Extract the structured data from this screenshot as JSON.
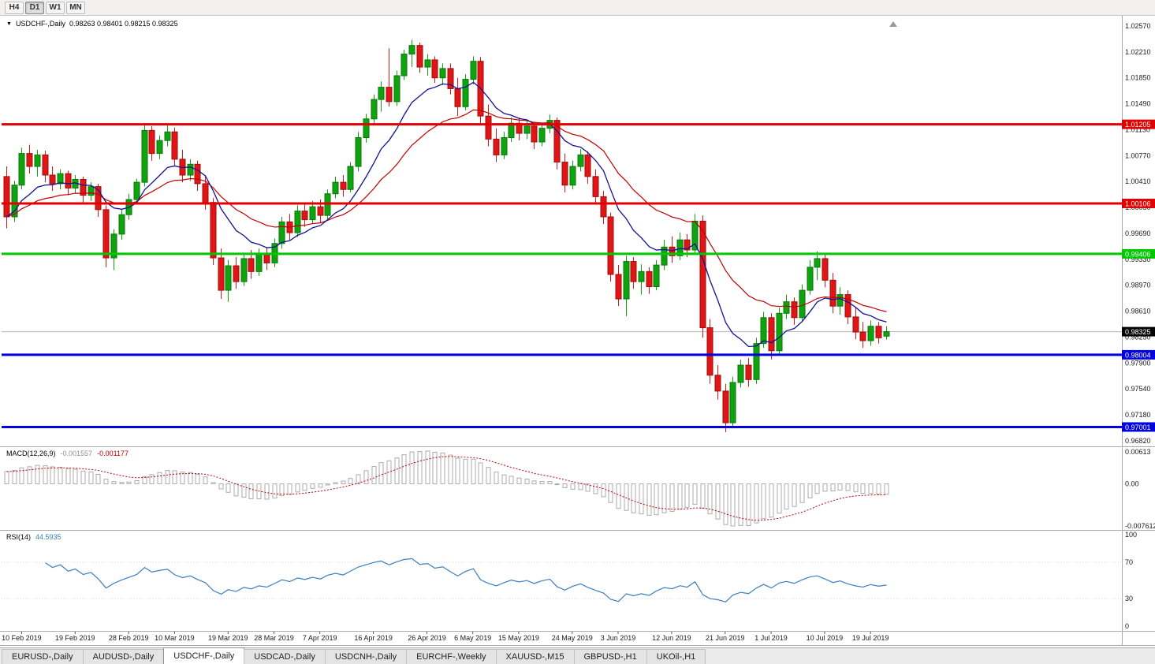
{
  "toolbar": {
    "timeframes": [
      "H4",
      "D1",
      "W1",
      "MN"
    ],
    "active_timeframe": "D1"
  },
  "chart": {
    "title": "USDCHF-,Daily",
    "ohlc_readout": "0.98263 0.98401 0.98215 0.98325"
  },
  "macd_panel": {
    "name": "MACD(12,26,9)",
    "value_main": "-0.001557",
    "value_signal": "-0.001177"
  },
  "rsi_panel": {
    "name": "RSI(14)",
    "value": "44.5935"
  },
  "tabs": [
    "EURUSD-,Daily",
    "AUDUSD-,Daily",
    "USDCHF-,Daily",
    "USDCAD-,Daily",
    "USDCNH-,Daily",
    "EURCHF-,Weekly",
    "XAUUSD-,M15",
    "GBPUSD-,H1",
    "UKOil-,H1"
  ],
  "active_tab": "USDCHF-,Daily",
  "chart_data": {
    "type": "candlestick",
    "symbol": "USDCHF",
    "timeframe": "Daily",
    "colors": {
      "up": "#0FA30F",
      "up_border": "#077707",
      "down": "#E01616",
      "down_border": "#A00C0C",
      "ma_fast": "#121293",
      "ma_slow": "#C00000",
      "rsi": "#3C7EBF",
      "macd_hist": "#ABABAB",
      "macd_signal": "#C00000"
    },
    "y_axis": {
      "top_price": 1.0257,
      "step": 0.0036,
      "bottom_price": 0.9682
    },
    "price_axis_labels": [
      "1.02570",
      "1.02210",
      "1.01850",
      "1.01490",
      "1.01130",
      "1.00770",
      "1.00410",
      "1.00050",
      "0.99690",
      "0.99330",
      "0.98970",
      "0.98610",
      "0.98250",
      "0.97900",
      "0.97540",
      "0.97180",
      "0.96820"
    ],
    "levels": [
      {
        "price": 1.01205,
        "label": "1.01205",
        "color": "#E00000",
        "type": "resistance"
      },
      {
        "price": 1.00106,
        "label": "1.00106",
        "color": "#E00000",
        "type": "resistance"
      },
      {
        "price": 0.99406,
        "label": "0.99406",
        "color": "#00C800",
        "type": "pivot"
      },
      {
        "price": 0.98004,
        "label": "0.98004",
        "color": "#0000E0",
        "type": "support"
      },
      {
        "price": 0.97001,
        "label": "0.97001",
        "color": "#0000E0",
        "type": "support"
      }
    ],
    "current_price": {
      "price": 0.98325,
      "label": "0.98325"
    },
    "indicators": {
      "macd": {
        "fast": 12,
        "slow": 26,
        "signal": 9,
        "axis_max": "0.00613",
        "axis_zero": "0.00",
        "axis_min": "-0.007612"
      },
      "rsi": {
        "period": 14,
        "axis": [
          "100",
          "70",
          "30",
          "0"
        ]
      }
    },
    "date_labels": [
      {
        "text": "10 Feb 2019",
        "i": 2
      },
      {
        "text": "19 Feb 2019",
        "i": 9
      },
      {
        "text": "28 Feb 2019",
        "i": 16
      },
      {
        "text": "10 Mar 2019",
        "i": 22
      },
      {
        "text": "19 Mar 2019",
        "i": 29
      },
      {
        "text": "28 Mar 2019",
        "i": 35
      },
      {
        "text": "7 Apr 2019",
        "i": 41
      },
      {
        "text": "16 Apr 2019",
        "i": 48
      },
      {
        "text": "26 Apr 2019",
        "i": 55
      },
      {
        "text": "6 May 2019",
        "i": 61
      },
      {
        "text": "15 May 2019",
        "i": 67
      },
      {
        "text": "24 May 2019",
        "i": 74
      },
      {
        "text": "3 Jun 2019",
        "i": 80
      },
      {
        "text": "12 Jun 2019",
        "i": 87
      },
      {
        "text": "21 Jun 2019",
        "i": 94
      },
      {
        "text": "1 Jul 2019",
        "i": 100
      },
      {
        "text": "10 Jul 2019",
        "i": 107
      },
      {
        "text": "19 Jul 2019",
        "i": 113
      }
    ],
    "ohlc": [
      [
        1.0048,
        1.0062,
        0.9976,
        0.9992
      ],
      [
        0.9992,
        1.0042,
        0.9985,
        1.0036
      ],
      [
        1.0036,
        1.0088,
        1.003,
        1.008
      ],
      [
        1.008,
        1.0092,
        1.0052,
        1.0062
      ],
      [
        1.0062,
        1.0085,
        1.0048,
        1.0078
      ],
      [
        1.0078,
        1.0084,
        1.004,
        1.005
      ],
      [
        1.005,
        1.0062,
        1.0028,
        1.0038
      ],
      [
        1.0038,
        1.0058,
        1.003,
        1.0052
      ],
      [
        1.0052,
        1.0056,
        1.0022,
        1.0032
      ],
      [
        1.0032,
        1.005,
        1.0024,
        1.0044
      ],
      [
        1.0044,
        1.0048,
        1.0012,
        1.0022
      ],
      [
        1.0022,
        1.004,
        1.0014,
        1.0034
      ],
      [
        1.0034,
        1.0038,
        0.9992,
        1.0002
      ],
      [
        1.0002,
        1.0008,
        0.9922,
        0.9935
      ],
      [
        0.9935,
        0.9975,
        0.9918,
        0.9968
      ],
      [
        0.9968,
        1.0002,
        0.996,
        0.9995
      ],
      [
        0.9995,
        1.0024,
        0.9988,
        1.0016
      ],
      [
        1.0016,
        1.0045,
        1.001,
        1.004
      ],
      [
        1.004,
        1.0122,
        1.0034,
        1.0112
      ],
      [
        1.0112,
        1.0118,
        1.007,
        1.008
      ],
      [
        1.008,
        1.0105,
        1.0072,
        1.0098
      ],
      [
        1.0098,
        1.012,
        1.009,
        1.011
      ],
      [
        1.011,
        1.0116,
        1.0062,
        1.0072
      ],
      [
        1.0072,
        1.0085,
        1.004,
        1.005
      ],
      [
        1.005,
        1.0072,
        1.0042,
        1.0065
      ],
      [
        1.0065,
        1.007,
        1.0028,
        1.0038
      ],
      [
        1.0038,
        1.0048,
        1.0002,
        1.0012
      ],
      [
        1.0012,
        1.0018,
        0.9925,
        0.9935
      ],
      [
        0.9935,
        0.9948,
        0.9878,
        0.989
      ],
      [
        0.989,
        0.9932,
        0.9874,
        0.9924
      ],
      [
        0.9924,
        0.9936,
        0.9892,
        0.9902
      ],
      [
        0.9902,
        0.9942,
        0.9896,
        0.9934
      ],
      [
        0.9934,
        0.9946,
        0.9906,
        0.9916
      ],
      [
        0.9916,
        0.9948,
        0.991,
        0.994
      ],
      [
        0.994,
        0.995,
        0.9918,
        0.9928
      ],
      [
        0.9928,
        0.9962,
        0.9922,
        0.9955
      ],
      [
        0.9955,
        0.9992,
        0.9948,
        0.9985
      ],
      [
        0.9985,
        0.9996,
        0.996,
        0.997
      ],
      [
        0.997,
        1.0008,
        0.9964,
        1.0
      ],
      [
        1.0,
        1.001,
        0.9978,
        0.9988
      ],
      [
        0.9988,
        1.0014,
        0.9982,
        1.0006
      ],
      [
        1.0006,
        1.0016,
        0.9984,
        0.9994
      ],
      [
        0.9994,
        1.003,
        0.9988,
        1.0024
      ],
      [
        1.0024,
        1.0048,
        1.0018,
        1.004
      ],
      [
        1.004,
        1.005,
        1.002,
        1.003
      ],
      [
        1.003,
        1.0068,
        1.0026,
        1.0062
      ],
      [
        1.0062,
        1.011,
        1.0055,
        1.0102
      ],
      [
        1.0102,
        1.0135,
        1.0095,
        1.0128
      ],
      [
        1.0128,
        1.0162,
        1.012,
        1.0155
      ],
      [
        1.0155,
        1.018,
        1.0138,
        1.0172
      ],
      [
        1.0172,
        1.0226,
        1.0145,
        1.0152
      ],
      [
        1.0152,
        1.0195,
        1.0146,
        1.0188
      ],
      [
        1.0188,
        1.0224,
        1.0182,
        1.0218
      ],
      [
        1.0218,
        1.0238,
        1.02,
        1.023
      ],
      [
        1.023,
        1.0234,
        1.0192,
        1.02
      ],
      [
        1.02,
        1.0218,
        1.0188,
        1.021
      ],
      [
        1.021,
        1.0215,
        1.0178,
        1.0185
      ],
      [
        1.0185,
        1.0205,
        1.0175,
        1.0198
      ],
      [
        1.0198,
        1.0205,
        1.0162,
        1.017
      ],
      [
        1.017,
        1.0185,
        1.0132,
        1.0145
      ],
      [
        1.0145,
        1.019,
        1.014,
        1.0183
      ],
      [
        1.0183,
        1.0215,
        1.0176,
        1.0208
      ],
      [
        1.0208,
        1.0214,
        1.0122,
        1.0132
      ],
      [
        1.0132,
        1.0148,
        1.009,
        1.01
      ],
      [
        1.01,
        1.0115,
        1.0068,
        1.0078
      ],
      [
        1.0078,
        1.011,
        1.0072,
        1.0102
      ],
      [
        1.0102,
        1.013,
        1.0096,
        1.0122
      ],
      [
        1.0122,
        1.013,
        1.0098,
        1.0108
      ],
      [
        1.0108,
        1.0126,
        1.01,
        1.0118
      ],
      [
        1.0118,
        1.0124,
        1.0086,
        1.0096
      ],
      [
        1.0096,
        1.0122,
        1.009,
        1.0115
      ],
      [
        1.0115,
        1.0134,
        1.0108,
        1.0126
      ],
      [
        1.0126,
        1.013,
        1.0058,
        1.0068
      ],
      [
        1.0068,
        1.008,
        1.0026,
        1.0036
      ],
      [
        1.0036,
        1.007,
        1.003,
        1.0062
      ],
      [
        1.0062,
        1.0086,
        1.0055,
        1.0078
      ],
      [
        1.0078,
        1.0083,
        1.0038,
        1.0048
      ],
      [
        1.0048,
        1.0058,
        1.001,
        1.002
      ],
      [
        1.002,
        1.0028,
        0.9982,
        0.9992
      ],
      [
        0.9992,
        0.9998,
        0.9902,
        0.9912
      ],
      [
        0.9912,
        0.9925,
        0.9868,
        0.9878
      ],
      [
        0.9878,
        0.9938,
        0.9854,
        0.993
      ],
      [
        0.993,
        0.9936,
        0.9892,
        0.9902
      ],
      [
        0.9902,
        0.9926,
        0.9884,
        0.9916
      ],
      [
        0.9916,
        0.9922,
        0.9885,
        0.9895
      ],
      [
        0.9895,
        0.9932,
        0.989,
        0.9925
      ],
      [
        0.9925,
        0.996,
        0.9918,
        0.995
      ],
      [
        0.995,
        0.9965,
        0.9928,
        0.9938
      ],
      [
        0.9938,
        0.997,
        0.9932,
        0.996
      ],
      [
        0.996,
        0.9968,
        0.9936,
        0.9946
      ],
      [
        0.9946,
        0.9996,
        0.994,
        0.9986
      ],
      [
        0.9986,
        0.9994,
        0.9824,
        0.9838
      ],
      [
        0.9838,
        0.985,
        0.976,
        0.9772
      ],
      [
        0.9772,
        0.9786,
        0.9738,
        0.975
      ],
      [
        0.975,
        0.976,
        0.9693,
        0.9706
      ],
      [
        0.9706,
        0.977,
        0.97,
        0.9762
      ],
      [
        0.9762,
        0.9794,
        0.9755,
        0.9786
      ],
      [
        0.9786,
        0.9796,
        0.9756,
        0.9766
      ],
      [
        0.9766,
        0.9824,
        0.976,
        0.9816
      ],
      [
        0.9816,
        0.986,
        0.981,
        0.9852
      ],
      [
        0.9852,
        0.9858,
        0.9794,
        0.9806
      ],
      [
        0.9806,
        0.9866,
        0.98,
        0.9858
      ],
      [
        0.9858,
        0.9884,
        0.985,
        0.9874
      ],
      [
        0.9874,
        0.988,
        0.9842,
        0.9852
      ],
      [
        0.9852,
        0.9898,
        0.9846,
        0.989
      ],
      [
        0.989,
        0.9932,
        0.9884,
        0.9922
      ],
      [
        0.9922,
        0.9944,
        0.9904,
        0.9934
      ],
      [
        0.9934,
        0.994,
        0.9894,
        0.9904
      ],
      [
        0.9904,
        0.9914,
        0.9858,
        0.9868
      ],
      [
        0.9868,
        0.9894,
        0.9856,
        0.9884
      ],
      [
        0.9884,
        0.989,
        0.9843,
        0.9853
      ],
      [
        0.9853,
        0.9866,
        0.9822,
        0.9832
      ],
      [
        0.9832,
        0.9846,
        0.981,
        0.982
      ],
      [
        0.982,
        0.9848,
        0.9813,
        0.984
      ],
      [
        0.984,
        0.9846,
        0.9816,
        0.9824
      ],
      [
        0.98263,
        0.98401,
        0.98215,
        0.98325
      ]
    ]
  }
}
